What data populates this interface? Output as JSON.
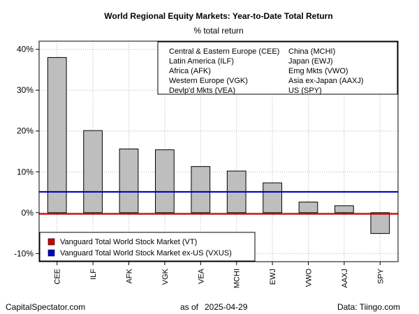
{
  "chart_data": {
    "type": "bar",
    "title": "World Regional Equity Markets: Year-to-Date Total Return",
    "subtitle": "% total return",
    "categories": [
      "CEE",
      "ILF",
      "AFK",
      "VGK",
      "VEA",
      "MCHI",
      "EWJ",
      "VWO",
      "AAXJ",
      "SPY"
    ],
    "values": [
      38.0,
      20.1,
      15.6,
      15.4,
      11.3,
      10.2,
      7.3,
      2.6,
      1.7,
      -5.1
    ],
    "ylim": [
      -12,
      42
    ],
    "yticks": [
      -10,
      0,
      10,
      20,
      30,
      40
    ],
    "ytick_labels": [
      "-10%",
      "0%",
      "10%",
      "20%",
      "30%",
      "40%"
    ],
    "grid": true,
    "bar_color": "#bebebe",
    "reference_lines": [
      {
        "name": "Vanguard Total World Stock Market (VT)",
        "value": -0.3,
        "color": "#cc0000"
      },
      {
        "name": "Vanguard Total World Stock Market ex-US (VXUS)",
        "value": 5.1,
        "color": "#0000cc"
      }
    ],
    "key_box": {
      "left_column": [
        "Central & Eastern Europe (CEE)",
        "Latin America (ILF)",
        "Africa (AFK)",
        "Western Europe (VGK)",
        "Devlp'd Mkts (VEA)"
      ],
      "right_column": [
        "China (MCHI)",
        "Japan (EWJ)",
        "Emg Mkts (VWO)",
        "Asia ex-Japan (AAXJ)",
        "US (SPY)"
      ],
      "placement": "top-right"
    },
    "legend_placement": "bottom-left"
  },
  "footer": {
    "left": "CapitalSpectator.com",
    "center_prefix": "as of",
    "date": "2025-04-29",
    "right": "Data: Tiingo.com"
  }
}
